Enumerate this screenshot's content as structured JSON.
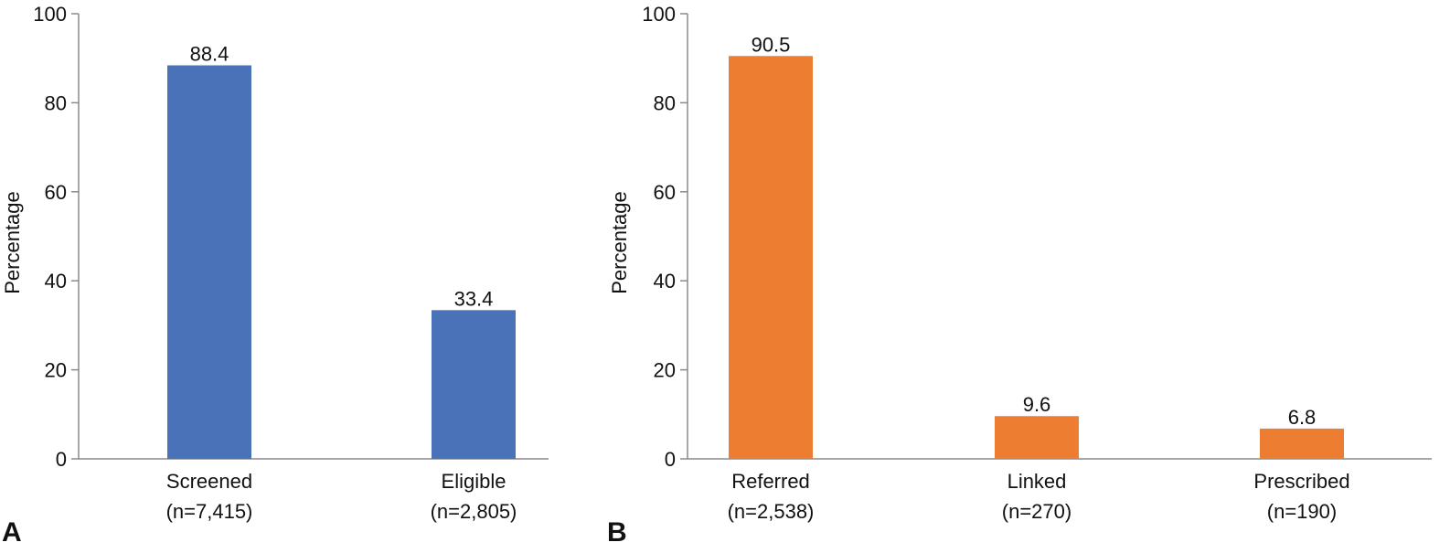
{
  "chart_data": [
    {
      "type": "bar",
      "panel_label": "A",
      "categories": [
        "Screened",
        "Eligible"
      ],
      "category_counts": [
        "(n=7,415)",
        "(n=2,805)"
      ],
      "values": [
        88.4,
        33.4
      ],
      "value_labels": [
        "88.4",
        "33.4"
      ],
      "ylabel": "Percentage",
      "ylim": [
        0,
        100
      ],
      "yticks": [
        0,
        20,
        40,
        60,
        80,
        100
      ],
      "bar_color": "#4A72B8",
      "grid": false
    },
    {
      "type": "bar",
      "panel_label": "B",
      "categories": [
        "Referred",
        "Linked",
        "Prescribed"
      ],
      "category_counts": [
        "(n=2,538)",
        "(n=270)",
        "(n=190)"
      ],
      "values": [
        90.5,
        9.6,
        6.8
      ],
      "value_labels": [
        "90.5",
        "9.6",
        "6.8"
      ],
      "ylabel": "Percentage",
      "ylim": [
        0,
        100
      ],
      "yticks": [
        0,
        20,
        40,
        60,
        80,
        100
      ],
      "bar_color": "#ED7D31",
      "grid": false
    }
  ]
}
